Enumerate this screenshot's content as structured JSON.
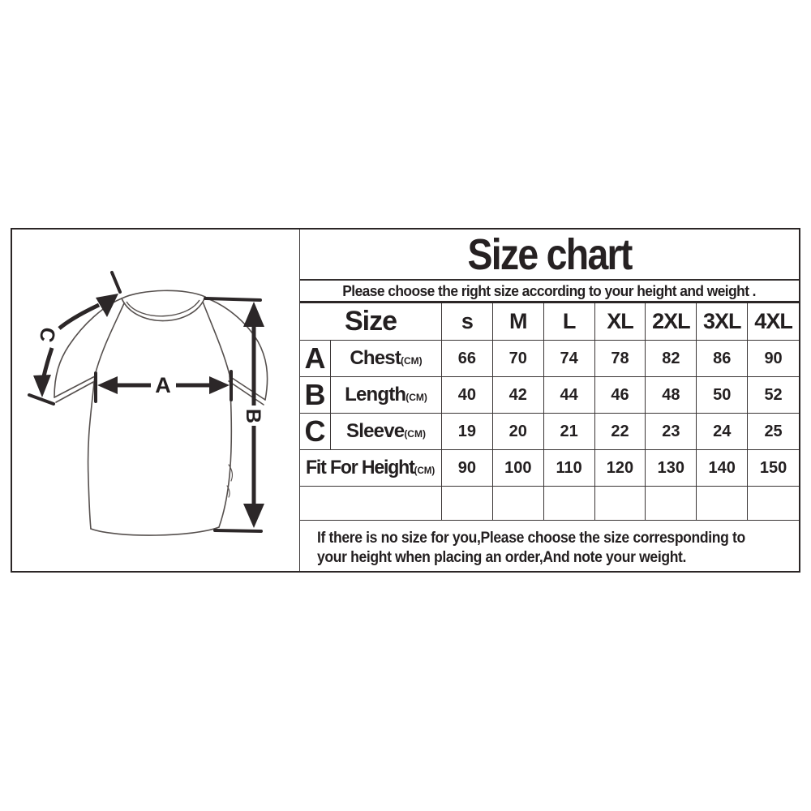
{
  "box": {
    "title": "Size chart",
    "subtitle": "Please choose the right size according to your height and weight .",
    "table": {
      "size_header": "Size",
      "sizes": [
        "s",
        "M",
        "L",
        "XL",
        "2XL",
        "3XL",
        "4XL"
      ],
      "rows": [
        {
          "letter": "A",
          "name": "Chest",
          "unit": "(CM)",
          "values": [
            "66",
            "70",
            "74",
            "78",
            "82",
            "86",
            "90"
          ]
        },
        {
          "letter": "B",
          "name": "Length",
          "unit": "(CM)",
          "values": [
            "40",
            "42",
            "44",
            "46",
            "48",
            "50",
            "52"
          ]
        },
        {
          "letter": "C",
          "name": "Sleeve",
          "unit": "(CM)",
          "values": [
            "19",
            "20",
            "21",
            "22",
            "23",
            "24",
            "25"
          ]
        }
      ],
      "fit_row": {
        "name": "Fit For Height",
        "unit": "(CM)",
        "values": [
          "90",
          "100",
          "110",
          "120",
          "130",
          "140",
          "150"
        ]
      },
      "empty_row": true
    },
    "footer_line1": "If there is no size for you,Please choose the size corresponding to",
    "footer_line2": "your height when placing an order,And note your weight."
  },
  "diagram": {
    "labels": {
      "chest": "A",
      "length": "B",
      "sleeve": "C"
    }
  },
  "colors": {
    "ink": "#231f20",
    "outline": "#56504e",
    "arrow": "#2c2728",
    "background": "#ffffff"
  }
}
